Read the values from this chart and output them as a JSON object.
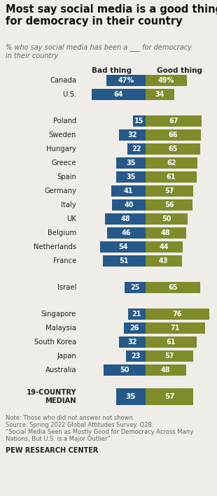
{
  "title": "Most say social media is a good thing\nfor democracy in their country",
  "subtitle": "% who say social media has been a ___ for democracy\nin their country",
  "col_headers": [
    "Bad thing",
    "Good thing"
  ],
  "groups": [
    {
      "countries": [
        "Canada",
        "U.S."
      ],
      "bad": [
        47,
        64
      ],
      "good": [
        49,
        34
      ],
      "show_pct": [
        true,
        false
      ]
    },
    {
      "countries": [
        "Poland",
        "Sweden",
        "Hungary",
        "Greece",
        "Spain",
        "Germany",
        "Italy",
        "UK",
        "Belgium",
        "Netherlands",
        "France"
      ],
      "bad": [
        15,
        32,
        22,
        35,
        35,
        41,
        40,
        48,
        46,
        54,
        51
      ],
      "good": [
        67,
        66,
        65,
        62,
        61,
        57,
        56,
        50,
        48,
        44,
        43
      ],
      "show_pct": [
        false,
        false,
        false,
        false,
        false,
        false,
        false,
        false,
        false,
        false,
        false
      ]
    },
    {
      "countries": [
        "Israel"
      ],
      "bad": [
        25
      ],
      "good": [
        65
      ],
      "show_pct": [
        false
      ]
    },
    {
      "countries": [
        "Singapore",
        "Malaysia",
        "South Korea",
        "Japan",
        "Australia"
      ],
      "bad": [
        21,
        26,
        32,
        23,
        50
      ],
      "good": [
        76,
        71,
        61,
        57,
        48
      ],
      "show_pct": [
        false,
        false,
        false,
        false,
        false
      ]
    }
  ],
  "median": {
    "label": "19-COUNTRY\nMEDIAN",
    "bad": 35,
    "good": 57
  },
  "bad_color": "#25598a",
  "good_color": "#808b2a",
  "bg_color": "#f0ede8",
  "note_line1": "Note: Those who did not answer not shown.",
  "note_line2": "Source: Spring 2022 Global Attitudes Survey. Q28.",
  "note_line3": "“Social Media Seen as Mostly Good for Democracy Across Many",
  "note_line4": "Nations, But U.S. is a Major Outlier”",
  "footer": "PEW RESEARCH CENTER",
  "max_val": 80
}
